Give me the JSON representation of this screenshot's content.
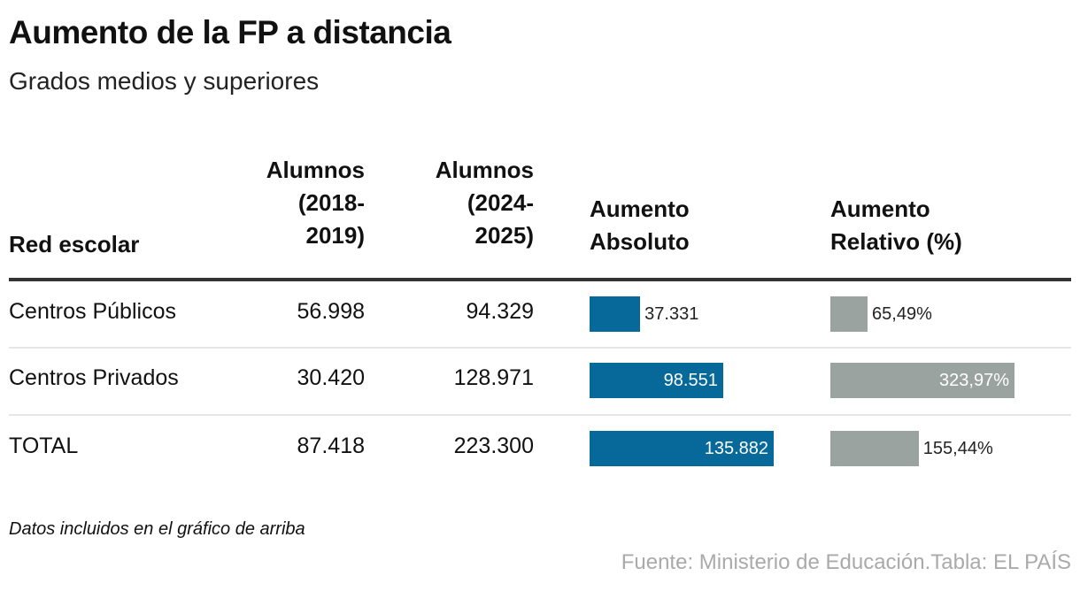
{
  "title": "Aumento de la FP a distancia",
  "subtitle": "Grados medios y superiores",
  "chart_data": {
    "type": "table",
    "columns": [
      {
        "lines": [
          "Red escolar"
        ]
      },
      {
        "lines": [
          "Alumnos",
          "(2018-",
          "2019)"
        ]
      },
      {
        "lines": [
          "Alumnos",
          "(2024-",
          "2025)"
        ]
      },
      {
        "lines": [
          "Aumento",
          "Absoluto"
        ]
      },
      {
        "lines": [
          "Aumento",
          "Relativo (%)"
        ]
      }
    ],
    "rows": [
      {
        "name": "Centros Públicos",
        "a2018": "56.998",
        "a2024": "94.329",
        "abs": 37331,
        "abs_label": "37.331",
        "rel": 65.49,
        "rel_label": "65,49%"
      },
      {
        "name": "Centros Privados",
        "a2018": "30.420",
        "a2024": "128.971",
        "abs": 98551,
        "abs_label": "98.551",
        "rel": 323.97,
        "rel_label": "323,97%"
      },
      {
        "name": "TOTAL",
        "a2018": "87.418",
        "a2024": "223.300",
        "abs": 135882,
        "abs_label": "135.882",
        "rel": 155.44,
        "rel_label": "155,44%"
      }
    ],
    "colors": {
      "absolute": "#06699a",
      "relative": "#9ba3a1"
    }
  },
  "note": "Datos incluidos en el gráfico de arriba",
  "source": "Fuente: Ministerio de Educación.Tabla: EL PAÍS"
}
